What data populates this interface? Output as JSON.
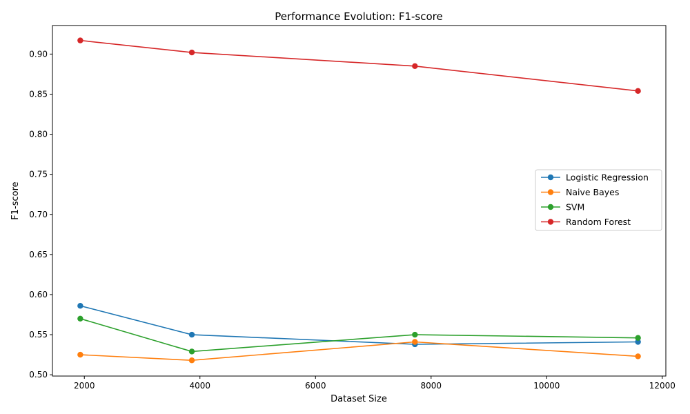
{
  "chart_data": {
    "type": "line",
    "title": "Performance Evolution: F1-score",
    "xlabel": "Dataset Size",
    "ylabel": "F1-score",
    "x": [
      1930,
      3860,
      7720,
      11580
    ],
    "xlim": [
      1448,
      12062
    ],
    "ylim": [
      0.4984,
      0.9356
    ],
    "xticks": [
      2000,
      4000,
      6000,
      8000,
      10000,
      12000
    ],
    "yticks": [
      0.5,
      0.55,
      0.6,
      0.65,
      0.7,
      0.75,
      0.8,
      0.85,
      0.9
    ],
    "ytick_labels": [
      "0.50",
      "0.55",
      "0.60",
      "0.65",
      "0.70",
      "0.75",
      "0.80",
      "0.85",
      "0.90"
    ],
    "grid": false,
    "legend_position": "center-right",
    "series": [
      {
        "name": "Logistic Regression",
        "color": "#1f77b4",
        "values": [
          0.586,
          0.55,
          0.538,
          0.541
        ]
      },
      {
        "name": "Naive Bayes",
        "color": "#ff7f0e",
        "values": [
          0.525,
          0.518,
          0.541,
          0.523
        ]
      },
      {
        "name": "SVM",
        "color": "#2ca02c",
        "values": [
          0.57,
          0.529,
          0.55,
          0.546
        ]
      },
      {
        "name": "Random Forest",
        "color": "#d62728",
        "values": [
          0.917,
          0.902,
          0.885,
          0.854
        ]
      }
    ]
  }
}
